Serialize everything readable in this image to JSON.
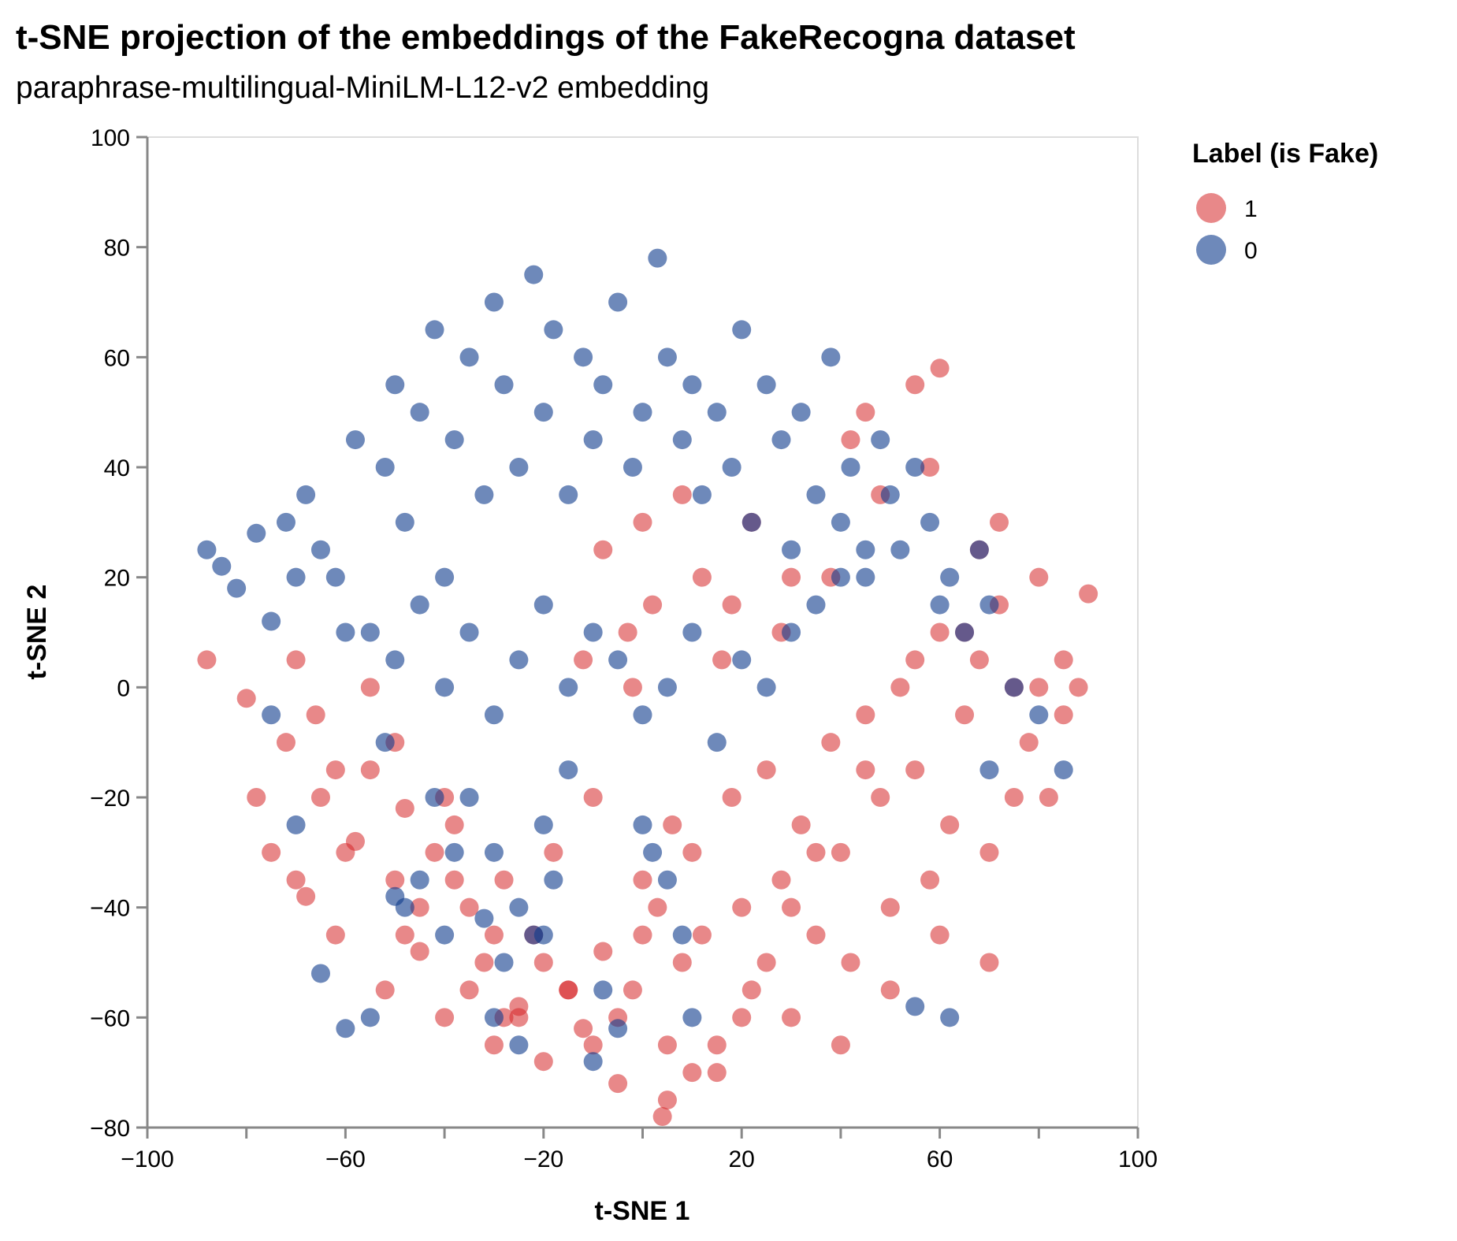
{
  "chart_data": {
    "type": "scatter",
    "title": "t-SNE projection of the embeddings of the FakeRecogna dataset",
    "subtitle": "paraphrase-multilingual-MiniLM-L12-v2 embedding",
    "xlabel": "t-SNE 1",
    "ylabel": "t-SNE 2",
    "xlim": [
      -100,
      100
    ],
    "ylim": [
      -80,
      100
    ],
    "x_ticks": [
      -100,
      -60,
      -20,
      20,
      60,
      100
    ],
    "x_tick_labels": [
      "−100",
      "−60",
      "−20",
      "20",
      "60",
      "100"
    ],
    "y_ticks": [
      100,
      80,
      60,
      40,
      20,
      0,
      -20,
      -40,
      -60,
      -80
    ],
    "y_tick_labels": [
      "100",
      "80",
      "60",
      "40",
      "20",
      "0",
      "−20",
      "−40",
      "−60",
      "−80"
    ],
    "grid": false,
    "legend": {
      "title": "Label (is Fake)",
      "placement": "top-right",
      "entries": [
        {
          "label": "1",
          "color": "#d62728"
        },
        {
          "label": "0",
          "color": "#0d3b8c"
        }
      ]
    },
    "series": [
      {
        "label": "1",
        "color": "#d62728",
        "x": [
          -88,
          -80,
          -78,
          -75,
          -72,
          -70,
          -68,
          -66,
          -62,
          -58,
          -55,
          -52,
          -50,
          -48,
          -45,
          -42,
          -40,
          -38,
          -35,
          -32,
          -30,
          -28,
          -25,
          -22,
          -20,
          -18,
          -15,
          -12,
          -10,
          -8,
          -5,
          -2,
          0,
          3,
          5,
          8,
          10,
          12,
          15,
          18,
          20,
          22,
          25,
          28,
          30,
          32,
          35,
          38,
          40,
          42,
          45,
          48,
          50,
          52,
          55,
          58,
          60,
          62,
          65,
          68,
          70,
          72,
          75,
          78,
          80,
          82,
          85,
          88,
          90,
          -65,
          -60,
          -55,
          -50,
          -45,
          -40,
          -35,
          -30,
          -25,
          -20,
          -10,
          0,
          10,
          20,
          30,
          40,
          50,
          60,
          70,
          80,
          -70,
          -62,
          -48,
          -38,
          -28,
          -15,
          -5,
          5,
          15,
          25,
          35,
          45,
          55,
          65,
          75,
          85,
          -8,
          0,
          8,
          12,
          2,
          -3,
          6,
          16,
          -12,
          28,
          38,
          48,
          58,
          68,
          72,
          60,
          55,
          45,
          42,
          30,
          22,
          18,
          -2,
          4
        ],
        "y": [
          5,
          -2,
          -20,
          -30,
          -10,
          5,
          -38,
          -5,
          -45,
          -28,
          -15,
          -55,
          -35,
          -22,
          -48,
          -30,
          -60,
          -25,
          -40,
          -50,
          -65,
          -35,
          -58,
          -45,
          -68,
          -30,
          -55,
          -62,
          -20,
          -48,
          -72,
          -55,
          -35,
          -40,
          -65,
          -50,
          -30,
          -45,
          -70,
          -20,
          -40,
          -55,
          -15,
          -35,
          -60,
          -25,
          -45,
          -10,
          -30,
          -50,
          -5,
          -20,
          -40,
          0,
          -15,
          -35,
          10,
          -25,
          -5,
          5,
          -30,
          15,
          0,
          -10,
          20,
          -20,
          5,
          0,
          17,
          -20,
          -30,
          0,
          -10,
          -40,
          -20,
          -55,
          -45,
          -60,
          -50,
          -65,
          -45,
          -70,
          -60,
          -40,
          -65,
          -55,
          -45,
          -50,
          0,
          -35,
          -15,
          -45,
          -35,
          -60,
          -55,
          -60,
          -75,
          -65,
          -50,
          -30,
          -15,
          5,
          10,
          -20,
          -5,
          25,
          30,
          35,
          20,
          15,
          10,
          -25,
          5,
          5,
          10,
          20,
          35,
          40,
          25,
          30,
          58,
          55,
          50,
          45,
          20,
          30,
          15,
          0,
          -78
        ]
      },
      {
        "label": "0",
        "color": "#0d3b8c",
        "x": [
          -88,
          -85,
          -82,
          -78,
          -75,
          -72,
          -70,
          -68,
          -65,
          -62,
          -58,
          -55,
          -52,
          -50,
          -48,
          -45,
          -42,
          -40,
          -38,
          -35,
          -32,
          -30,
          -28,
          -25,
          -22,
          -20,
          -18,
          -15,
          -12,
          -10,
          -8,
          -5,
          -2,
          0,
          3,
          5,
          8,
          10,
          12,
          15,
          18,
          20,
          22,
          25,
          28,
          30,
          32,
          35,
          38,
          40,
          42,
          45,
          48,
          50,
          52,
          55,
          58,
          60,
          62,
          65,
          68,
          70,
          -60,
          -50,
          -45,
          -40,
          -35,
          -30,
          -25,
          -20,
          -15,
          -10,
          -5,
          0,
          5,
          10,
          15,
          20,
          25,
          30,
          35,
          40,
          45,
          -35,
          -30,
          -25,
          -20,
          -18,
          -15,
          -22,
          -28,
          -32,
          -38,
          -42,
          -48,
          -55,
          -52,
          -45,
          -30,
          -25,
          -20,
          -10,
          -5,
          -8,
          0,
          2,
          5,
          8,
          10,
          55,
          62,
          70,
          75,
          80,
          85,
          -65,
          -70,
          -75,
          -50,
          -60,
          -40
        ],
        "y": [
          25,
          22,
          18,
          28,
          12,
          30,
          20,
          35,
          25,
          20,
          45,
          10,
          40,
          55,
          30,
          50,
          65,
          20,
          45,
          60,
          35,
          70,
          55,
          40,
          75,
          50,
          65,
          35,
          60,
          45,
          55,
          70,
          40,
          50,
          78,
          60,
          45,
          55,
          35,
          50,
          40,
          65,
          30,
          55,
          45,
          25,
          50,
          35,
          60,
          30,
          40,
          20,
          45,
          35,
          25,
          40,
          30,
          15,
          20,
          10,
          25,
          15,
          10,
          5,
          15,
          0,
          10,
          -5,
          5,
          15,
          0,
          10,
          5,
          -5,
          0,
          10,
          -10,
          5,
          0,
          10,
          15,
          20,
          25,
          -20,
          -30,
          -40,
          -25,
          -35,
          -15,
          -45,
          -50,
          -42,
          -30,
          -20,
          -40,
          -60,
          -10,
          -35,
          -60,
          -65,
          -45,
          -68,
          -62,
          -55,
          -25,
          -30,
          -35,
          -45,
          -60,
          -58,
          -60,
          -15,
          0,
          -5,
          -15,
          -52,
          -25,
          -5,
          -38,
          -62,
          -45
        ]
      }
    ]
  }
}
